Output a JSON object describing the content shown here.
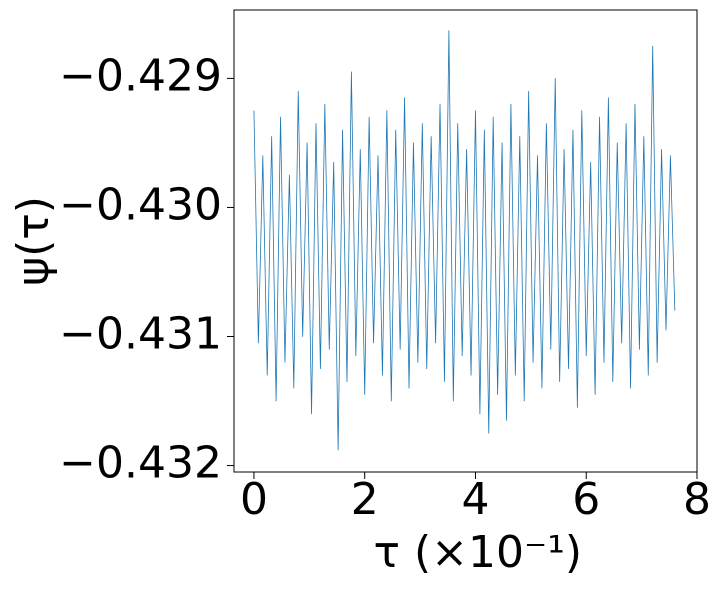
{
  "chart_data": {
    "type": "line",
    "xlabel": "τ (×10⁻¹)",
    "ylabel": "ψ(τ)",
    "x": [
      0,
      0.08,
      0.16,
      0.24,
      0.32,
      0.4,
      0.48,
      0.56,
      0.64,
      0.72,
      0.8,
      0.88,
      0.96,
      1.04,
      1.12,
      1.2,
      1.28,
      1.36,
      1.44,
      1.52,
      1.6,
      1.68,
      1.76,
      1.84,
      1.92,
      2,
      2.08,
      2.16,
      2.24,
      2.32,
      2.4,
      2.48,
      2.56,
      2.64,
      2.72,
      2.8,
      2.88,
      2.96,
      3.04,
      3.12,
      3.2,
      3.28,
      3.36,
      3.44,
      3.52,
      3.6,
      3.68,
      3.76,
      3.84,
      3.92,
      4,
      4.08,
      4.16,
      4.24,
      4.32,
      4.4,
      4.48,
      4.56,
      4.64,
      4.72,
      4.8,
      4.88,
      4.96,
      5.04,
      5.12,
      5.2,
      5.28,
      5.36,
      5.44,
      5.52,
      5.6,
      5.68,
      5.76,
      5.84,
      5.92,
      6,
      6.08,
      6.16,
      6.24,
      6.32,
      6.4,
      6.48,
      6.56,
      6.64,
      6.72,
      6.8,
      6.88,
      6.96,
      7.04,
      7.12,
      7.2,
      7.28,
      7.36,
      7.44,
      7.52,
      7.6
    ],
    "series": [
      {
        "color": "#1f77b4",
        "values": [
          -0.42925,
          -0.43105,
          -0.4296,
          -0.4313,
          -0.42945,
          -0.4315,
          -0.4293,
          -0.4312,
          -0.42975,
          -0.4314,
          -0.4291,
          -0.431,
          -0.4295,
          -0.4316,
          -0.42935,
          -0.43125,
          -0.4292,
          -0.4311,
          -0.42965,
          -0.43188,
          -0.4294,
          -0.43135,
          -0.42895,
          -0.43115,
          -0.42955,
          -0.43145,
          -0.4293,
          -0.43105,
          -0.4296,
          -0.4313,
          -0.42925,
          -0.4315,
          -0.4294,
          -0.4311,
          -0.42915,
          -0.4314,
          -0.4295,
          -0.4312,
          -0.42935,
          -0.43125,
          -0.42945,
          -0.43105,
          -0.4292,
          -0.43135,
          -0.42863,
          -0.4315,
          -0.42935,
          -0.43115,
          -0.42955,
          -0.4313,
          -0.42925,
          -0.4316,
          -0.4294,
          -0.43175,
          -0.4293,
          -0.43145,
          -0.4295,
          -0.43165,
          -0.4292,
          -0.4313,
          -0.42945,
          -0.4315,
          -0.4291,
          -0.4312,
          -0.4296,
          -0.4314,
          -0.42935,
          -0.4311,
          -0.429,
          -0.43135,
          -0.42955,
          -0.43125,
          -0.4294,
          -0.43155,
          -0.42925,
          -0.43115,
          -0.42965,
          -0.43145,
          -0.4293,
          -0.4312,
          -0.42915,
          -0.43135,
          -0.4295,
          -0.43105,
          -0.42935,
          -0.4314,
          -0.4292,
          -0.4311,
          -0.42945,
          -0.4313,
          -0.42875,
          -0.4312,
          -0.42955,
          -0.43095,
          -0.4296,
          -0.4308
        ]
      }
    ],
    "xlim": [
      -0.36,
      8.0
    ],
    "ylim": [
      -0.43205,
      -0.42847
    ],
    "xticks": [
      0,
      2,
      4,
      6,
      8
    ],
    "yticks": [
      {
        "value": -0.429,
        "label": "−0.429"
      },
      {
        "value": -0.43,
        "label": "−0.430"
      },
      {
        "value": -0.431,
        "label": "−0.431"
      },
      {
        "value": -0.432,
        "label": "−0.432"
      }
    ]
  }
}
